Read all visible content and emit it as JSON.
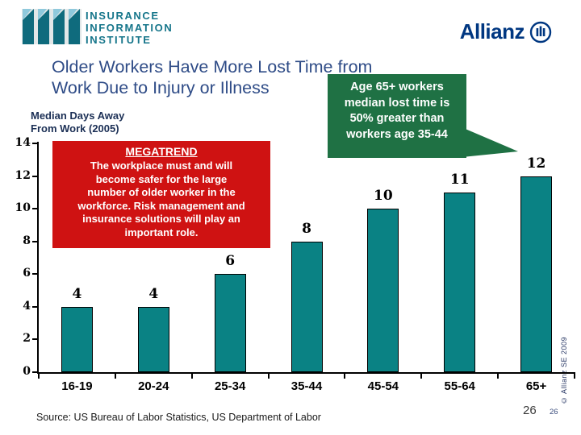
{
  "branding": {
    "iii": {
      "line1": "INSURANCE",
      "line2": "INFORMATION",
      "line3": "INSTITUTE"
    },
    "allianz": {
      "name": "Allianz"
    }
  },
  "slide": {
    "title_line1": "Older Workers Have More Lost Time from",
    "title_line2": "Work Due to Injury or Illness",
    "axis_caption_line1": "Median Days Away",
    "axis_caption_line2": "From Work (2005)",
    "source": "Source: US Bureau of Labor Statistics, US Department of Labor",
    "page_number": "26",
    "page_number_small": "26",
    "copyright_vertical": "© Allianz SE 2009"
  },
  "callout": {
    "lines": [
      "Age 65+ workers",
      "median lost time is",
      "50% greater than",
      "workers age 35-44"
    ]
  },
  "megatrend": {
    "title": "MEGATREND",
    "lines": [
      "The workplace must and will",
      "become safer for the large",
      "number of older worker in the",
      "workforce.  Risk management and",
      "insurance solutions will play an",
      "important role."
    ]
  },
  "chart_data": {
    "type": "bar",
    "title": "Median Days Away From Work (2005)",
    "categories": [
      "16-19",
      "20-24",
      "25-34",
      "35-44",
      "45-54",
      "55-64",
      "65+"
    ],
    "values": [
      4,
      4,
      6,
      8,
      10,
      11,
      12
    ],
    "xlabel": "",
    "ylabel": "",
    "ylim": [
      0,
      14
    ],
    "yticks": [
      0,
      2,
      4,
      6,
      8,
      10,
      12,
      14
    ],
    "grid": false,
    "legend": false,
    "data_labels": true
  },
  "colors": {
    "bar": "#0A8284",
    "red": "#CF1212",
    "green": "#1F7144",
    "title": "#2F4C87",
    "navy": "#1B2F55",
    "iii": "#15758A",
    "allianz": "#003781",
    "axis": "#000000"
  }
}
